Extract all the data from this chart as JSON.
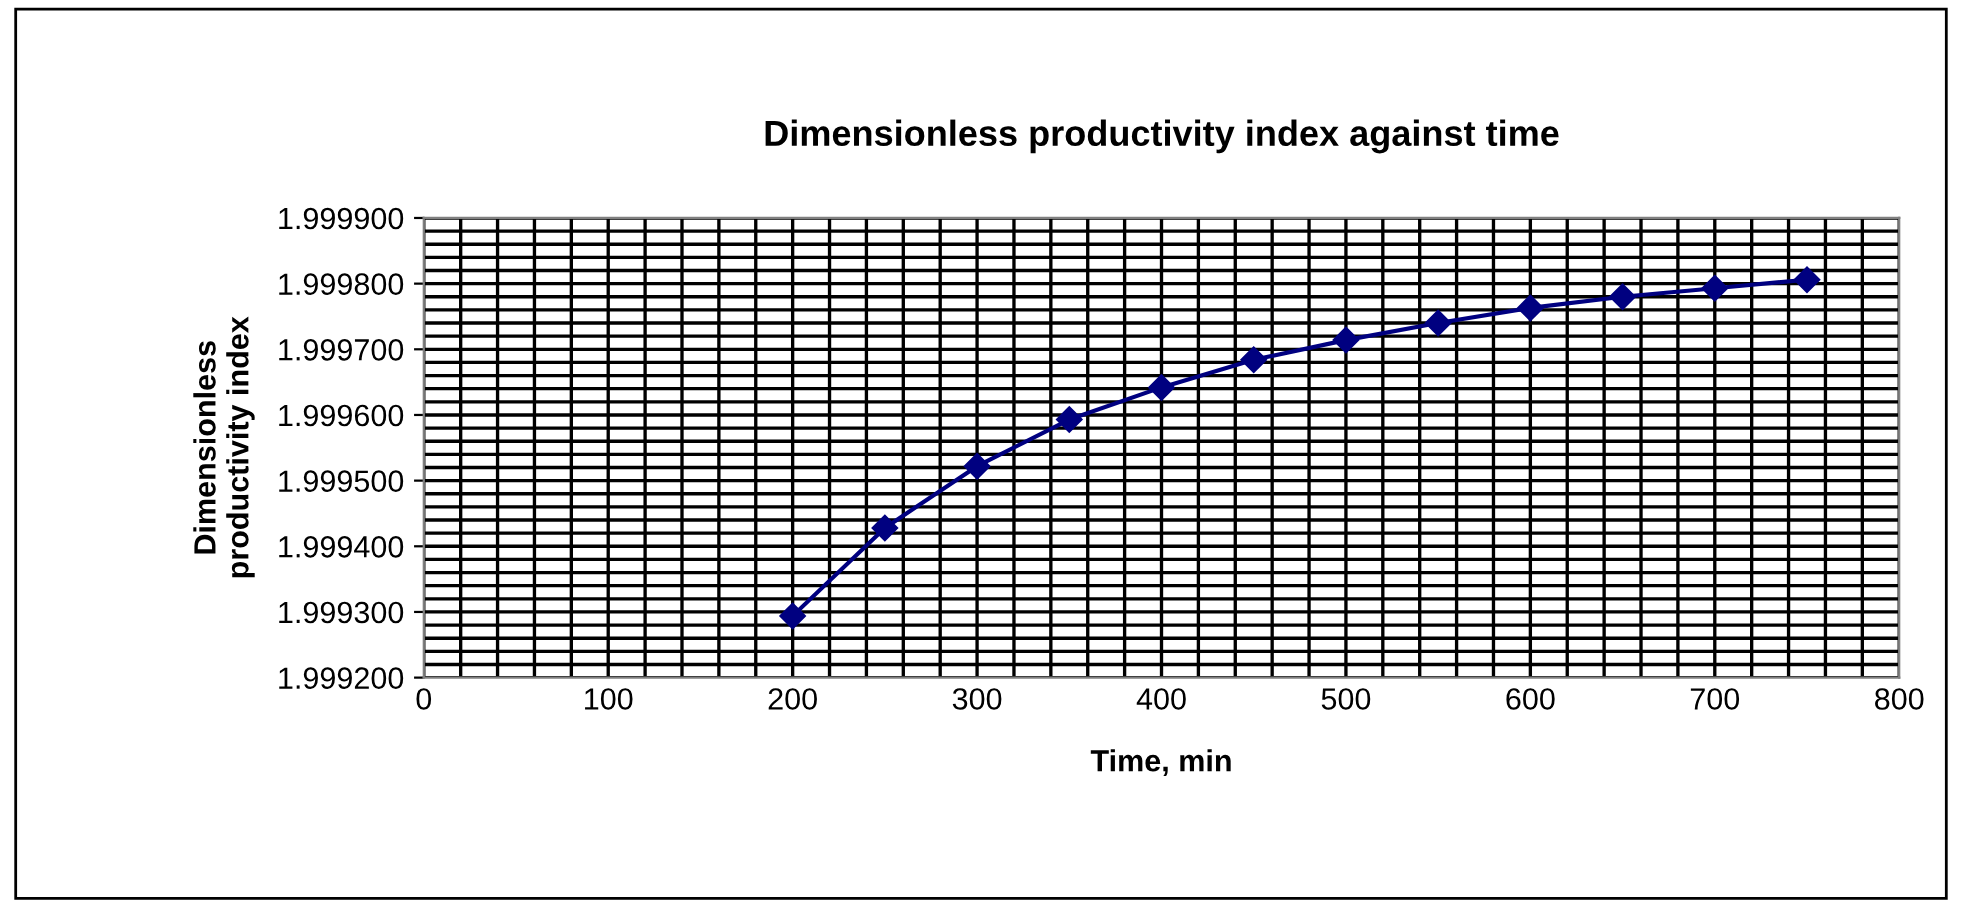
{
  "chart_data": {
    "type": "line",
    "title": "Dimensionless productivity index against time",
    "xlabel": "Time, min",
    "ylabel": "Dimensionless\nproductivity index",
    "x": [
      200,
      250,
      300,
      350,
      400,
      450,
      500,
      550,
      600,
      650,
      700,
      750
    ],
    "series": [
      {
        "color": "#000080",
        "values": [
          1.999294,
          1.999428,
          1.999522,
          1.999593,
          1.999642,
          1.999684,
          1.999714,
          1.99974,
          1.999763,
          1.99978,
          1.999793,
          1.999806
        ]
      }
    ],
    "xlim": [
      0,
      800
    ],
    "xticks": [
      0,
      100,
      200,
      300,
      400,
      500,
      600,
      700,
      800
    ],
    "ylim": [
      1.9992,
      1.9999
    ],
    "yticks": [
      {
        "value": 1.9992,
        "label": "1.999200"
      },
      {
        "value": 1.9993,
        "label": "1.999300"
      },
      {
        "value": 1.9994,
        "label": "1.999400"
      },
      {
        "value": 1.9995,
        "label": "1.999500"
      },
      {
        "value": 1.9996,
        "label": "1.999600"
      },
      {
        "value": 1.9997,
        "label": "1.999700"
      },
      {
        "value": 1.9998,
        "label": "1.999800"
      },
      {
        "value": 1.9999,
        "label": "1.999900"
      }
    ],
    "grid": true,
    "marker": "diamond",
    "line_style": "solid",
    "legend": false
  }
}
